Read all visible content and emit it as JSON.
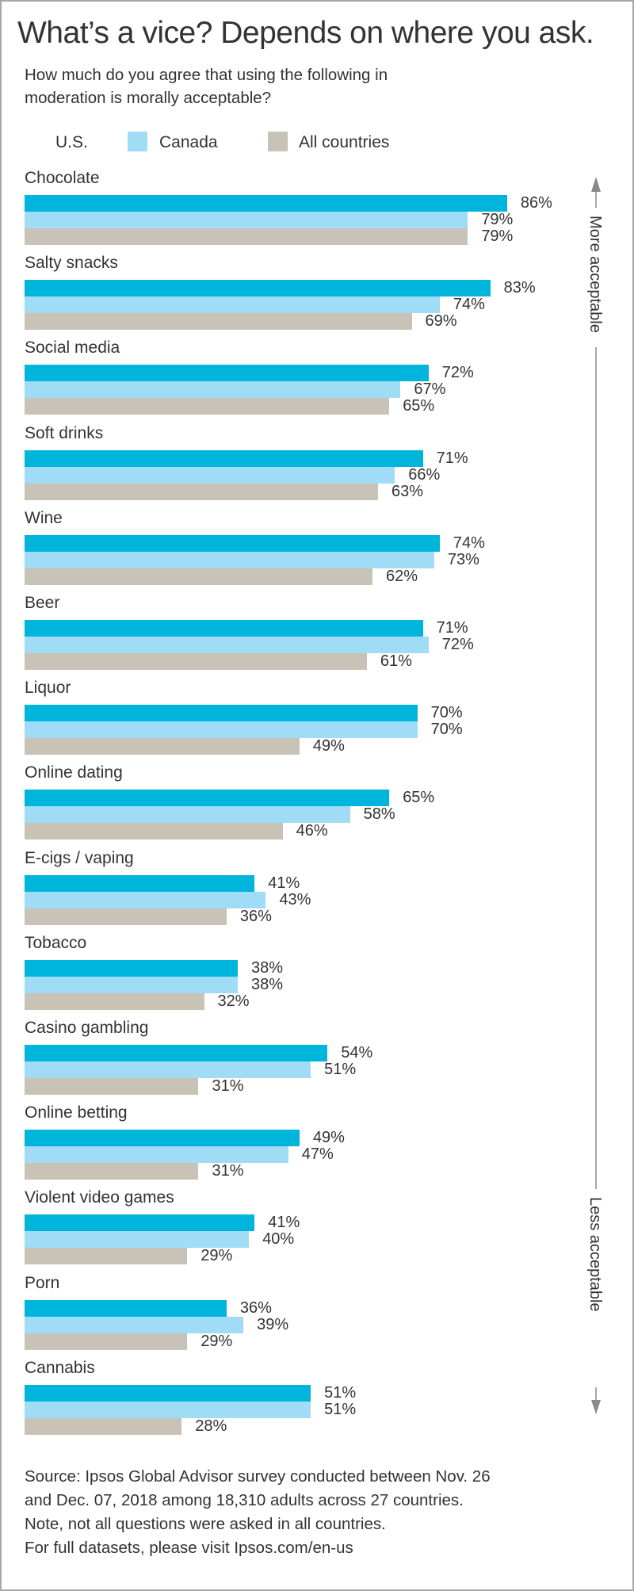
{
  "title": "What’s a vice? Depends on where you ask.",
  "subtitle": [
    "How much do you agree that using the following in",
    "moderation is morally acceptable?"
  ],
  "legend": [
    {
      "label": "U.S.",
      "color": "#00b5dc",
      "swatch": false
    },
    {
      "label": "Canada",
      "color": "#a0dcf6",
      "swatch": true
    },
    {
      "label": "All countries",
      "color": "#c9c2b6",
      "swatch": true
    }
  ],
  "side_axis": {
    "top_label": "More acceptable",
    "bottom_label": "Less acceptable",
    "color": "#8a8a8a"
  },
  "chart_data": {
    "type": "bar",
    "orientation": "horizontal",
    "categories": [
      "Chocolate",
      "Salty snacks",
      "Social media",
      "Soft drinks",
      "Wine",
      "Beer",
      "Liquor",
      "Online dating",
      "E-cigs / vaping",
      "Tobacco",
      "Casino gambling",
      "Online betting",
      "Violent video games",
      "Porn",
      "Cannabis"
    ],
    "series": [
      {
        "name": "U.S.",
        "color": "#00b5dc",
        "values": [
          86,
          83,
          72,
          71,
          74,
          71,
          70,
          65,
          41,
          38,
          54,
          49,
          41,
          36,
          51
        ]
      },
      {
        "name": "Canada",
        "color": "#a0dcf6",
        "values": [
          79,
          74,
          67,
          66,
          73,
          72,
          70,
          58,
          43,
          38,
          51,
          47,
          40,
          39,
          51
        ]
      },
      {
        "name": "All countries",
        "color": "#c9c2b6",
        "values": [
          79,
          69,
          65,
          63,
          62,
          61,
          49,
          46,
          36,
          32,
          31,
          31,
          29,
          29,
          28
        ]
      }
    ],
    "value_suffix": "%",
    "xlim": [
      0,
      100
    ],
    "grid": false,
    "legend_position": "top-left"
  },
  "footer": [
    "Source: Ipsos Global Advisor survey conducted between Nov. 26",
    "and Dec. 07, 2018 among 18,310 adults across 27 countries.",
    "Note, not all questions were asked in all countries.",
    "For full datasets, please visit Ipsos.com/en-us"
  ]
}
